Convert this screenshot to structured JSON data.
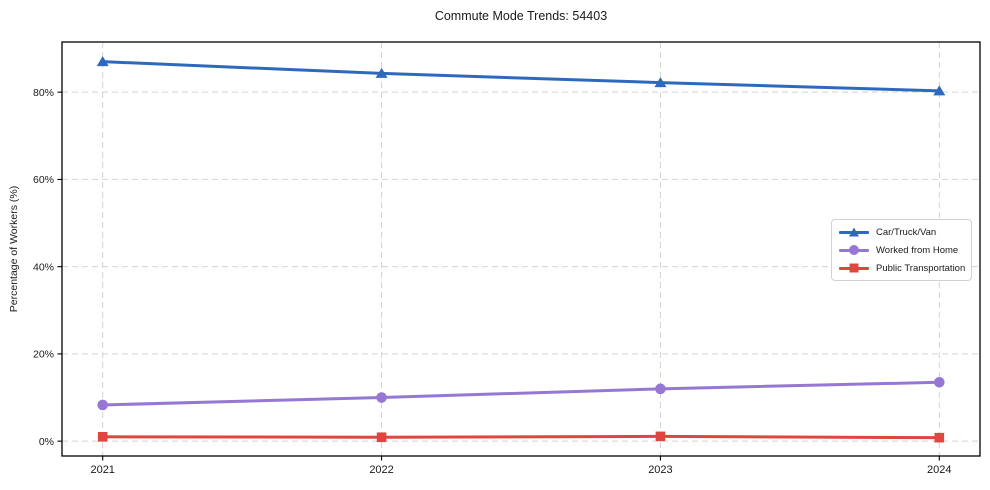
{
  "chart_data": {
    "type": "line",
    "title": "Commute Mode Trends: 54403",
    "xlabel": "",
    "ylabel": "Percentage of Workers (%)",
    "categories": [
      "2021",
      "2022",
      "2023",
      "2024"
    ],
    "series": [
      {
        "name": "Car/Truck/Van",
        "color": "#2f69be",
        "marker": "triangle",
        "values": [
          87.0,
          84.3,
          82.2,
          80.3
        ]
      },
      {
        "name": "Worked from Home",
        "color": "#9678d4",
        "marker": "circle",
        "values": [
          8.3,
          10.0,
          12.0,
          13.5
        ]
      },
      {
        "name": "Public Transportation",
        "color": "#e0463f",
        "marker": "square",
        "values": [
          1.0,
          0.9,
          1.1,
          0.8
        ]
      }
    ],
    "yticks": [
      0,
      20,
      40,
      60,
      80
    ],
    "ytick_labels": [
      "0%",
      "20%",
      "40%",
      "60%",
      "80%"
    ],
    "ylim": [
      -3.4,
      91.5
    ],
    "grid": true,
    "grid_color": "#d4d4d4",
    "axis_color": "#000000",
    "text_color": "#1a1a1a",
    "legend_position": "center right"
  }
}
